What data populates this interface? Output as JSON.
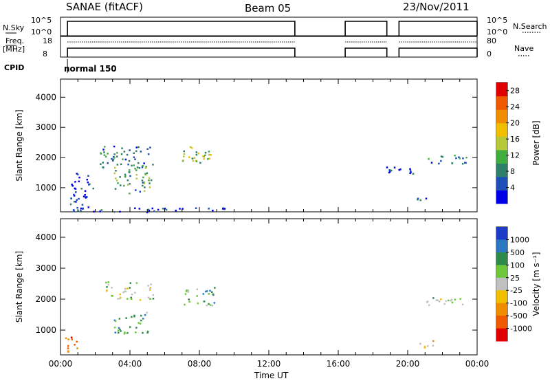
{
  "header": {
    "station": "SANAE (fitACF)",
    "beam": "Beam 05",
    "date": "23/Nov/2011"
  },
  "status_panel": {
    "nsky_label": "N.Sky",
    "nsky_ticks": [
      "10^5",
      "10^0"
    ],
    "nsearch_label": "N.Search",
    "nsearch_ticks": [
      "10^5",
      "10^0"
    ],
    "freq_label": "Freq.",
    "freq_unit": "[MHz]",
    "freq_ticks": [
      "18",
      "8"
    ],
    "nave_label": "Nave",
    "nave_ticks": [
      "80",
      "0"
    ],
    "cpid_label": "CPID",
    "cpid_value": "normal 150",
    "active_segments_hours": [
      [
        0.4,
        13.5
      ],
      [
        16.4,
        18.8
      ],
      [
        19.5,
        24.0
      ]
    ]
  },
  "chart_data": [
    {
      "type": "heatmap",
      "name": "power",
      "ylabel": "Slant Range [km]",
      "xlabel": "Time UT",
      "x_ticks": [
        "00:00",
        "04:00",
        "08:00",
        "12:00",
        "16:00",
        "20:00",
        "00:00"
      ],
      "xlim_hours": [
        0,
        24
      ],
      "y_ticks": [
        1000,
        2000,
        3000,
        4000
      ],
      "ylim": [
        200,
        4600
      ],
      "colorbar": {
        "label": "Power [dB]",
        "ticks": [
          4,
          8,
          12,
          16,
          20,
          24,
          28
        ],
        "range": [
          0,
          30
        ],
        "colors": [
          "#0000e8",
          "#1c4fb8",
          "#2e7f6a",
          "#3fae3f",
          "#b8c83a",
          "#f0c000",
          "#f08c00",
          "#ef5a00",
          "#e00000"
        ]
      },
      "echo_regions": [
        {
          "t0": 0.5,
          "t1": 1.9,
          "r0": 200,
          "r1": 1500,
          "level": 5
        },
        {
          "t0": 2.2,
          "t1": 5.3,
          "r0": 1700,
          "r1": 2400,
          "level": 6
        },
        {
          "t0": 3.0,
          "t1": 5.2,
          "r0": 800,
          "r1": 1800,
          "level": 12
        },
        {
          "t0": 7.0,
          "t1": 9.0,
          "r0": 1800,
          "r1": 2400,
          "level": 14
        },
        {
          "t0": 0.5,
          "t1": 9.5,
          "r0": 200,
          "r1": 350,
          "level": 5
        },
        {
          "t0": 18.5,
          "t1": 20.5,
          "r0": 1400,
          "r1": 1700,
          "level": 5
        },
        {
          "t0": 20.5,
          "t1": 21.5,
          "r0": 500,
          "r1": 700,
          "level": 6
        },
        {
          "t0": 21.0,
          "t1": 23.5,
          "r0": 1800,
          "r1": 2100,
          "level": 7
        }
      ]
    },
    {
      "type": "heatmap",
      "name": "velocity",
      "ylabel": "Slant Range [km]",
      "xlabel": "Time UT",
      "x_ticks": [
        "00:00",
        "04:00",
        "08:00",
        "12:00",
        "16:00",
        "20:00",
        "00:00"
      ],
      "xlim_hours": [
        0,
        24
      ],
      "y_ticks": [
        1000,
        2000,
        3000,
        4000
      ],
      "ylim": [
        200,
        4600
      ],
      "colorbar": {
        "label": "Velocity [m s⁻¹]",
        "ticks": [
          1000,
          500,
          100,
          25,
          -25,
          -100,
          -500,
          -1000
        ],
        "colors": [
          "#1c3cc8",
          "#2c78c0",
          "#2e8a4a",
          "#6cc83a",
          "#c0c0c0",
          "#f0c000",
          "#f08c00",
          "#ef5a00",
          "#e00000"
        ]
      },
      "echo_regions": [
        {
          "t0": 0.2,
          "t1": 1.0,
          "r0": 300,
          "r1": 900,
          "level": 7
        },
        {
          "t0": 2.5,
          "t1": 5.3,
          "r0": 2000,
          "r1": 2600,
          "level": 4
        },
        {
          "t0": 3.0,
          "t1": 5.0,
          "r0": 900,
          "r1": 1600,
          "level": 3
        },
        {
          "t0": 7.0,
          "t1": 9.0,
          "r0": 1800,
          "r1": 2400,
          "level": 3
        },
        {
          "t0": 20.5,
          "t1": 21.5,
          "r0": 450,
          "r1": 700,
          "level": 6
        },
        {
          "t0": 21.0,
          "t1": 23.5,
          "r0": 1800,
          "r1": 2100,
          "level": 4
        }
      ]
    }
  ]
}
